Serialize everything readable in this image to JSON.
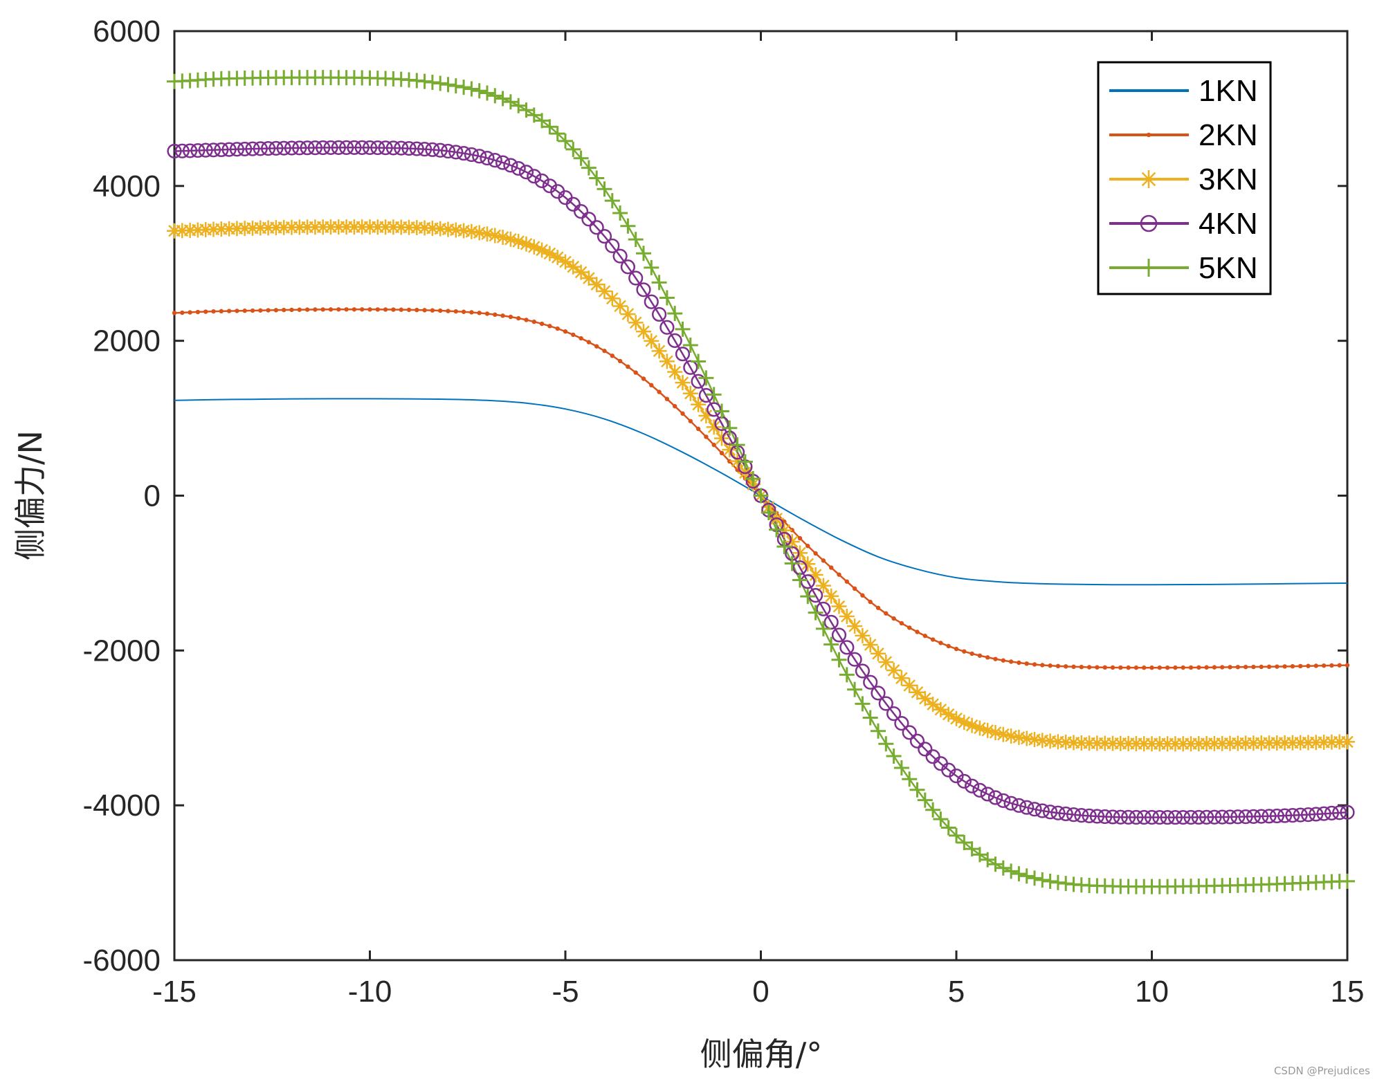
{
  "chart_data": {
    "type": "line",
    "xlabel": "侧偏角/°",
    "ylabel": "侧偏力/N",
    "xlim": [
      -15,
      15
    ],
    "ylim": [
      -6000,
      6000
    ],
    "xticks": [
      -15,
      -10,
      -5,
      0,
      5,
      10,
      15
    ],
    "yticks": [
      -6000,
      -4000,
      -2000,
      0,
      2000,
      4000,
      6000
    ],
    "xtick_labels": [
      "-15",
      "-10",
      "-5",
      "0",
      "5",
      "10",
      "15"
    ],
    "ytick_labels": [
      "-6000",
      "-4000",
      "-2000",
      "0",
      "2000",
      "4000",
      "6000"
    ],
    "grid": false,
    "legend_position": "top-right",
    "x": [
      -15,
      -14,
      -13,
      -12,
      -11,
      -10,
      -9,
      -8,
      -7,
      -6,
      -5,
      -4,
      -3,
      -2,
      -1,
      0,
      1,
      2,
      3,
      4,
      5,
      6,
      7,
      8,
      9,
      10,
      11,
      12,
      13,
      14,
      15
    ],
    "series": [
      {
        "name": "1KN",
        "color": "#0072BD",
        "marker": "none",
        "values": [
          1230,
          1240,
          1245,
          1250,
          1252,
          1252,
          1250,
          1245,
          1230,
          1195,
          1120,
          990,
          800,
          560,
          290,
          0,
          -290,
          -560,
          -790,
          -950,
          -1060,
          -1110,
          -1135,
          -1145,
          -1150,
          -1150,
          -1148,
          -1145,
          -1140,
          -1135,
          -1130
        ]
      },
      {
        "name": "2KN",
        "color": "#D95319",
        "marker": "dot",
        "values": [
          2360,
          2380,
          2390,
          2400,
          2405,
          2405,
          2400,
          2385,
          2350,
          2270,
          2120,
          1870,
          1510,
          1060,
          550,
          0,
          -550,
          -1020,
          -1450,
          -1760,
          -1980,
          -2110,
          -2180,
          -2210,
          -2220,
          -2222,
          -2220,
          -2215,
          -2210,
          -2200,
          -2190
        ]
      },
      {
        "name": "3KN",
        "color": "#EDB120",
        "marker": "asterisk",
        "values": [
          3420,
          3440,
          3455,
          3465,
          3470,
          3470,
          3465,
          3440,
          3380,
          3250,
          3020,
          2640,
          2120,
          1460,
          740,
          0,
          -740,
          -1430,
          -2040,
          -2540,
          -2880,
          -3060,
          -3150,
          -3190,
          -3200,
          -3205,
          -3205,
          -3200,
          -3195,
          -3190,
          -3180
        ]
      },
      {
        "name": "4KN",
        "color": "#7E2F8E",
        "marker": "circle",
        "values": [
          4450,
          4465,
          4480,
          4490,
          4495,
          4495,
          4485,
          4450,
          4360,
          4180,
          3850,
          3350,
          2660,
          1830,
          930,
          0,
          -930,
          -1800,
          -2550,
          -3170,
          -3620,
          -3900,
          -4050,
          -4120,
          -4150,
          -4155,
          -4155,
          -4150,
          -4140,
          -4120,
          -4090
        ]
      },
      {
        "name": "5KN",
        "color": "#77AC30",
        "marker": "plus",
        "values": [
          5350,
          5380,
          5395,
          5400,
          5400,
          5395,
          5370,
          5310,
          5200,
          4980,
          4580,
          3960,
          3130,
          2150,
          1090,
          0,
          -1090,
          -2120,
          -3040,
          -3800,
          -4390,
          -4760,
          -4940,
          -5020,
          -5045,
          -5050,
          -5045,
          -5035,
          -5020,
          -5000,
          -4980
        ]
      }
    ]
  },
  "footer": {
    "watermark": "CSDN @Prejudices"
  }
}
